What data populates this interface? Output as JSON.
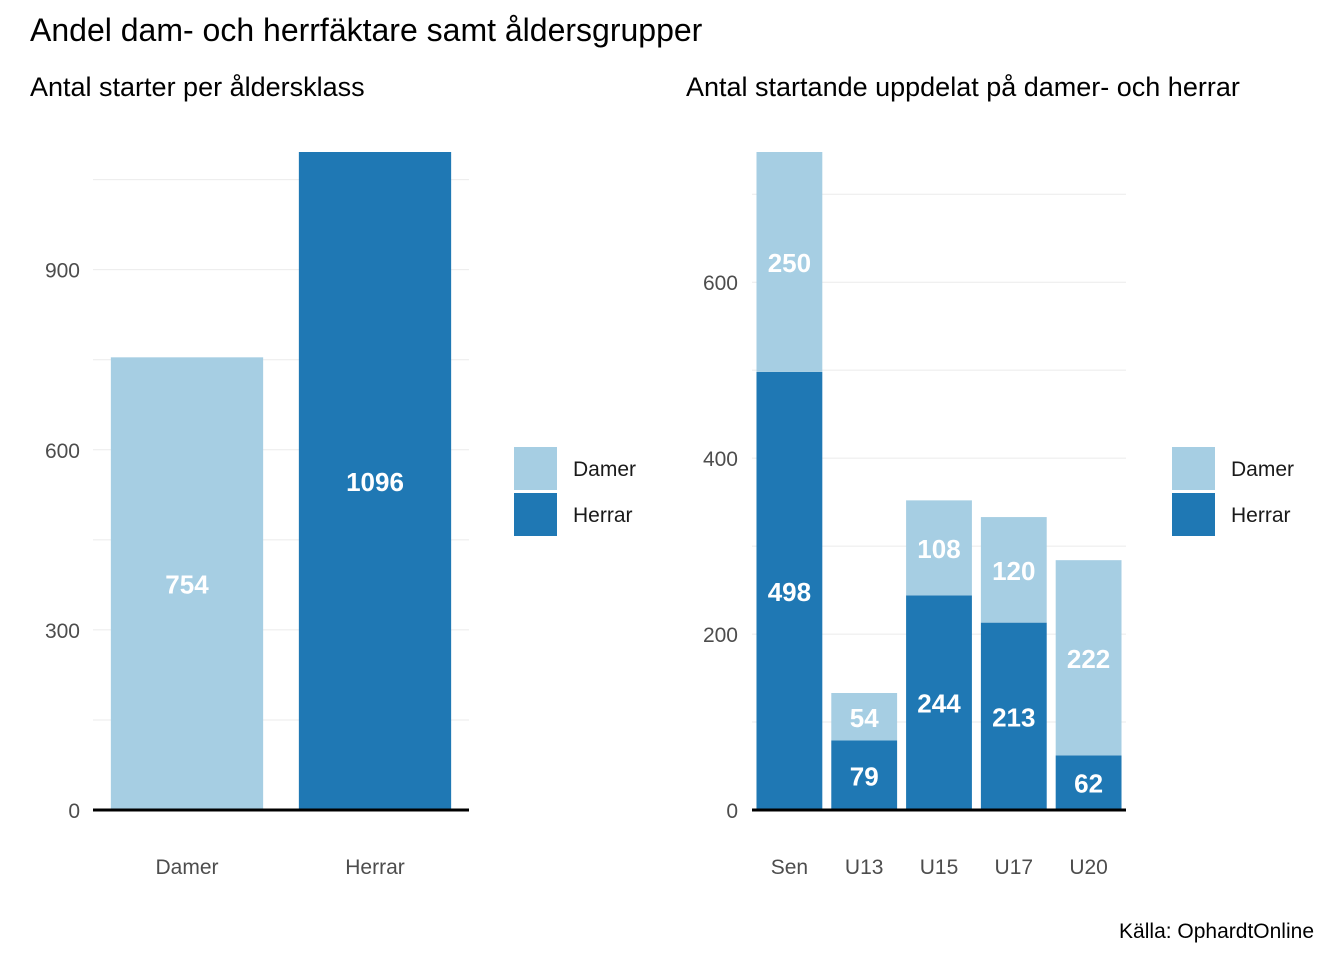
{
  "title": "Andel dam- och herrfäktare samt åldersgrupper",
  "source": "Källa: OphardtOnline",
  "colors": {
    "damer": "#a6cee3",
    "herrar": "#1f78b4"
  },
  "chart_data": [
    {
      "type": "bar",
      "title": "Antal starter per åldersklass",
      "categories": [
        "Damer",
        "Herrar"
      ],
      "values": [
        754,
        1096
      ],
      "ylim": [
        0,
        1096
      ],
      "yticks": [
        0,
        300,
        600,
        900
      ],
      "grid": true,
      "legend": {
        "position": "right",
        "entries": [
          "Damer",
          "Herrar"
        ]
      }
    },
    {
      "type": "bar",
      "stacked": true,
      "title": "Antal startande uppdelat på damer- och herrar",
      "categories": [
        "Sen",
        "U13",
        "U15",
        "U17",
        "U20"
      ],
      "series": [
        {
          "name": "Herrar",
          "values": [
            498,
            79,
            244,
            213,
            62
          ]
        },
        {
          "name": "Damer",
          "values": [
            250,
            54,
            108,
            120,
            222
          ]
        }
      ],
      "ylim": [
        0,
        748
      ],
      "yticks": [
        0,
        200,
        400,
        600
      ],
      "grid": true,
      "legend": {
        "position": "right",
        "entries": [
          "Damer",
          "Herrar"
        ]
      }
    }
  ]
}
